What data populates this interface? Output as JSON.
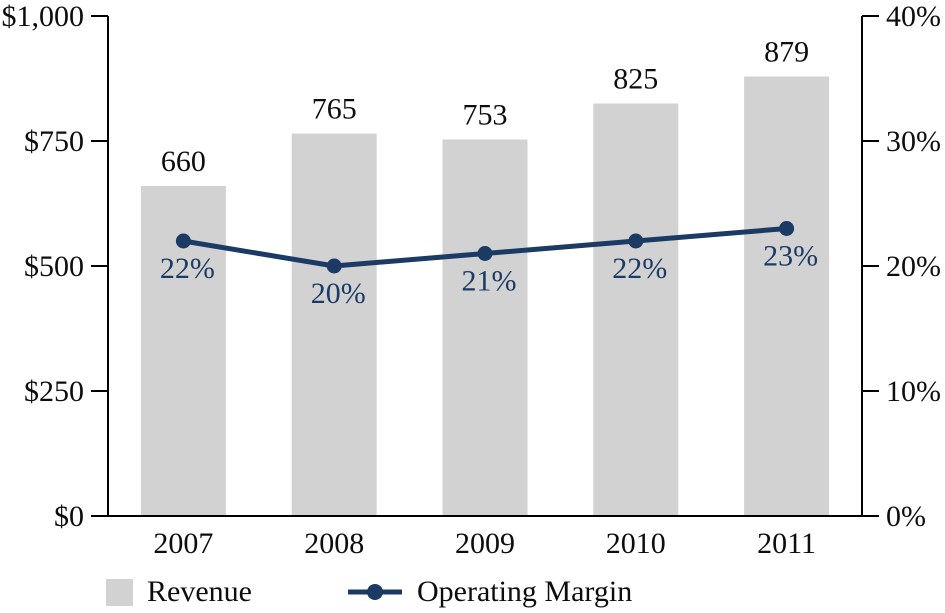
{
  "chart_data": {
    "type": "bar",
    "subtype": "combo-bar-line-dual-axis",
    "title": "",
    "categories": [
      "2007",
      "2008",
      "2009",
      "2010",
      "2011"
    ],
    "series": [
      {
        "name": "Revenue",
        "render": "bar",
        "axis": "left",
        "values": [
          660,
          765,
          753,
          825,
          879
        ],
        "labels": [
          "660",
          "765",
          "753",
          "825",
          "879"
        ],
        "color": "#d2d2d2"
      },
      {
        "name": "Operating Margin",
        "render": "line",
        "axis": "right",
        "values": [
          22,
          20,
          21,
          22,
          23
        ],
        "labels": [
          "22%",
          "20%",
          "21%",
          "22%",
          "23%"
        ],
        "color": "#1b3a64"
      }
    ],
    "left_axis": {
      "range": [
        0,
        1000
      ],
      "ticks": [
        0,
        250,
        500,
        750,
        1000
      ],
      "tick_labels": [
        "$0",
        "$250",
        "$500",
        "$750",
        "$1,000"
      ]
    },
    "right_axis": {
      "range": [
        0,
        40
      ],
      "ticks": [
        0,
        10,
        20,
        30,
        40
      ],
      "tick_labels": [
        "0%",
        "10%",
        "20%",
        "30%",
        "40%"
      ]
    },
    "grid": false,
    "legend_position": "bottom-left"
  },
  "legend": {
    "items": [
      {
        "label": "Revenue",
        "swatch": "gray-square"
      },
      {
        "label": "Operating Margin",
        "swatch": "navy-line-marker"
      }
    ]
  },
  "colors": {
    "bar_fill": "#d2d2d2",
    "line_navy": "#1b3a64",
    "axis_black": "#000000",
    "text_black": "#0d0d0d"
  }
}
